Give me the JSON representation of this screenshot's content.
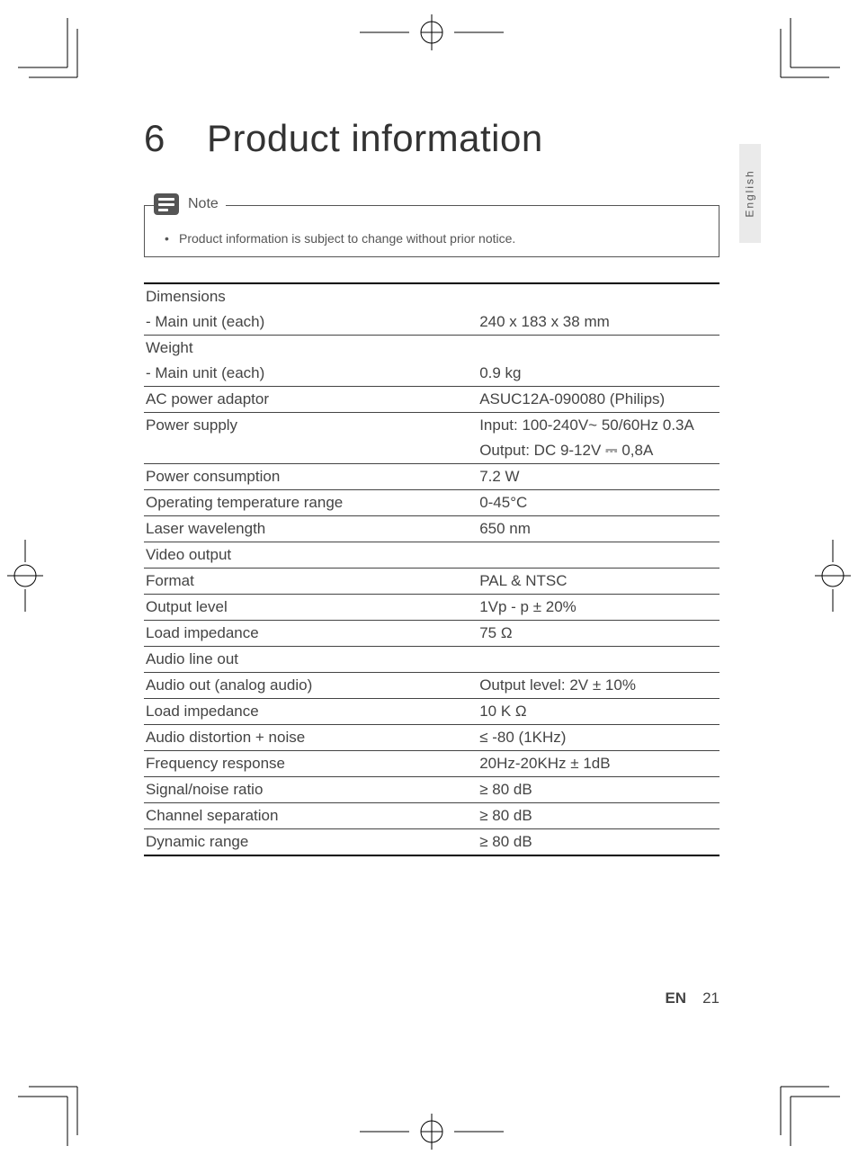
{
  "title_number": "6",
  "title_text": "Product information",
  "note": {
    "label": "Note",
    "text": "Product information is subject to change without prior notice."
  },
  "specs": [
    {
      "label": "Dimensions",
      "value": "",
      "noBorder": true
    },
    {
      "label": "- Main unit (each)",
      "value": "240 x 183 x 38 mm"
    },
    {
      "label": "Weight",
      "value": "",
      "noBorder": true
    },
    {
      "label": "- Main unit (each)",
      "value": "0.9 kg"
    },
    {
      "label": "AC power adaptor",
      "value": "ASUC12A-090080 (Philips)"
    },
    {
      "label": "Power supply",
      "value": "Input: 100-240V~ 50/60Hz 0.3A",
      "noBorder": true
    },
    {
      "label": "",
      "value": "Output: DC 9-12V ⎓ 0,8A"
    },
    {
      "label": "Power consumption",
      "value": "7.2 W"
    },
    {
      "label": "Operating temperature range",
      "value": "0-45°C"
    },
    {
      "label": "Laser wavelength",
      "value": "650 nm"
    },
    {
      "label": "Video output",
      "value": ""
    },
    {
      "label": "Format",
      "value": "PAL & NTSC"
    },
    {
      "label": "Output level",
      "value": "1Vp - p ± 20%"
    },
    {
      "label": "Load impedance",
      "value": "75 Ω"
    },
    {
      "label": "Audio line out",
      "value": ""
    },
    {
      "label": "Audio out (analog audio)",
      "value": "Output level: 2V ± 10%"
    },
    {
      "label": "Load impedance",
      "value": "10 K Ω"
    },
    {
      "label": "Audio distortion + noise",
      "value": "≤ -80 (1KHz)"
    },
    {
      "label": "Frequency response",
      "value": "20Hz-20KHz ± 1dB"
    },
    {
      "label": "Signal/noise ratio",
      "value": "≥ 80 dB"
    },
    {
      "label": "Channel separation",
      "value": "≥ 80 dB"
    },
    {
      "label": "Dynamic range",
      "value": "≥ 80 dB",
      "thickBottom": true
    }
  ],
  "lang_tab": "English",
  "footer": {
    "lang": "EN",
    "page": "21"
  },
  "colors": {
    "text": "#444444",
    "border": "#444444",
    "tab_bg": "#eaeaea",
    "icon_bg": "#555555"
  }
}
